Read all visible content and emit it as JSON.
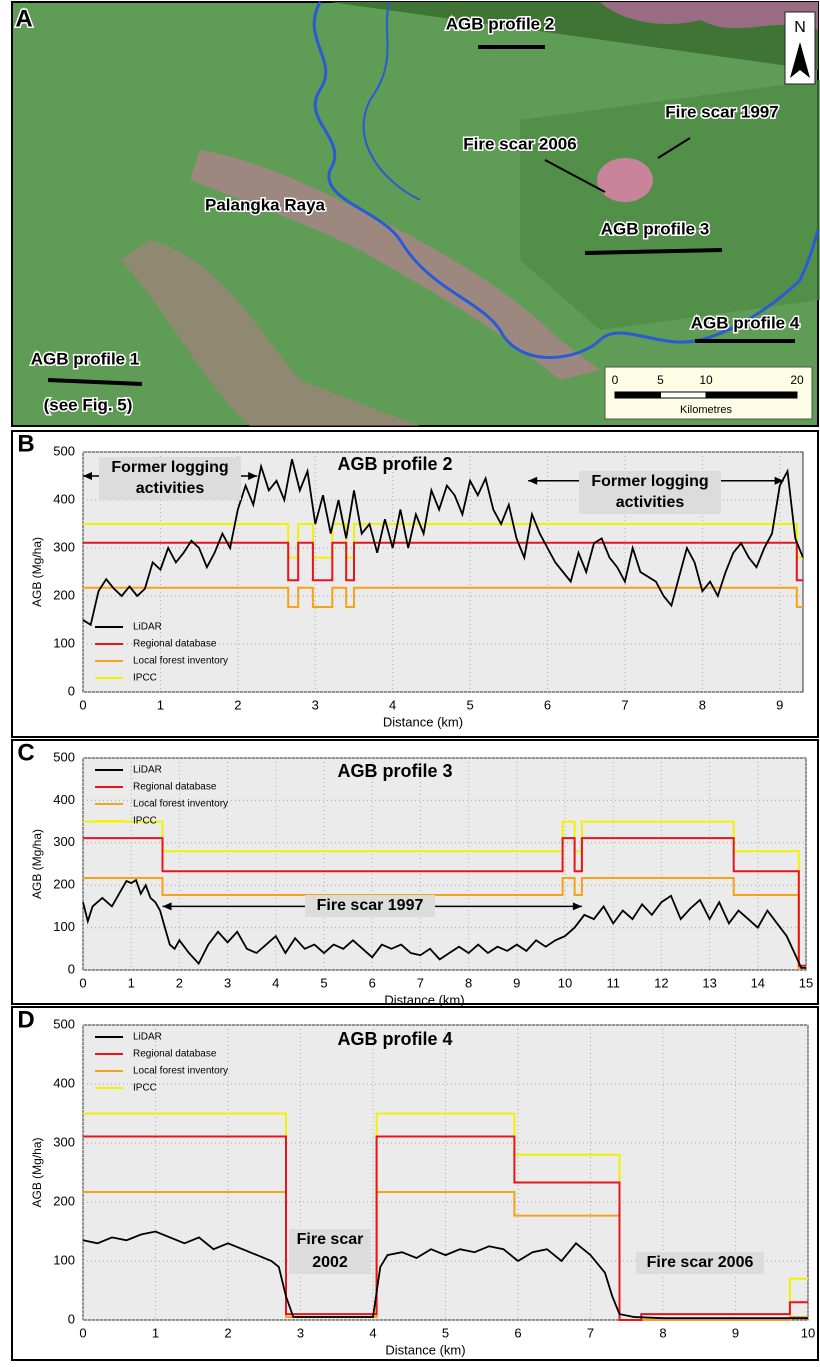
{
  "map": {
    "panel_label": "A",
    "north": "N",
    "labels": [
      "AGB profile 2",
      "Fire scar 1997",
      "Fire scar 2006",
      "Palangka Raya",
      "AGB profile 3",
      "AGB profile 4",
      "AGB profile 1",
      "(see Fig. 5)"
    ],
    "scale_bar": {
      "ticks": [
        0,
        5,
        10,
        20
      ],
      "unit": "Kilometres"
    }
  },
  "chart_data": [
    {
      "type": "line",
      "panel_label": "B",
      "title": "AGB profile 2",
      "x_label": "Distance (km)",
      "y_label": "AGB (Mg/ha)",
      "xlim": [
        0,
        9.3
      ],
      "ylim": [
        0,
        500
      ],
      "xticks": [
        0,
        1,
        2,
        3,
        4,
        5,
        6,
        7,
        8,
        9
      ],
      "yticks": [
        0,
        100,
        200,
        300,
        400,
        500
      ],
      "grid": true,
      "legend": "lower left",
      "annotations": [
        {
          "lines": [
            "Former logging",
            "activities"
          ]
        },
        {
          "lines": [
            "Former logging",
            "activities"
          ]
        }
      ],
      "series": [
        {
          "name": "LiDAR",
          "color": "#000000",
          "x": [
            0,
            0.1,
            0.2,
            0.3,
            0.4,
            0.5,
            0.6,
            0.7,
            0.8,
            0.9,
            1,
            1.1,
            1.2,
            1.3,
            1.4,
            1.5,
            1.6,
            1.7,
            1.8,
            1.9,
            2,
            2.1,
            2.2,
            2.3,
            2.4,
            2.5,
            2.6,
            2.7,
            2.8,
            2.9,
            3,
            3.1,
            3.2,
            3.3,
            3.4,
            3.5,
            3.6,
            3.7,
            3.8,
            3.9,
            4,
            4.1,
            4.2,
            4.3,
            4.4,
            4.5,
            4.6,
            4.7,
            4.8,
            4.9,
            5,
            5.1,
            5.2,
            5.3,
            5.4,
            5.5,
            5.6,
            5.7,
            5.8,
            5.9,
            6,
            6.1,
            6.2,
            6.3,
            6.4,
            6.5,
            6.6,
            6.7,
            6.8,
            6.9,
            7,
            7.1,
            7.2,
            7.3,
            7.4,
            7.5,
            7.6,
            7.7,
            7.8,
            7.9,
            8,
            8.1,
            8.2,
            8.3,
            8.4,
            8.5,
            8.6,
            8.7,
            8.8,
            8.9,
            9,
            9.1,
            9.2,
            9.3
          ],
          "values": [
            150,
            140,
            210,
            235,
            215,
            200,
            220,
            200,
            215,
            270,
            255,
            300,
            270,
            290,
            315,
            300,
            260,
            290,
            330,
            300,
            380,
            430,
            390,
            470,
            420,
            440,
            400,
            485,
            420,
            460,
            350,
            410,
            330,
            400,
            320,
            420,
            330,
            350,
            290,
            360,
            300,
            380,
            300,
            370,
            330,
            420,
            380,
            430,
            410,
            370,
            440,
            410,
            445,
            380,
            350,
            390,
            320,
            280,
            370,
            330,
            300,
            270,
            250,
            230,
            290,
            250,
            310,
            320,
            280,
            260,
            230,
            300,
            250,
            240,
            230,
            200,
            180,
            240,
            300,
            270,
            210,
            230,
            200,
            250,
            290,
            310,
            280,
            260,
            300,
            330,
            430,
            460,
            320,
            280
          ]
        },
        {
          "name": "Regional database",
          "color": "#e8141b",
          "x": [
            0,
            2.65,
            2.65,
            2.78,
            2.78,
            2.97,
            2.97,
            3.22,
            3.22,
            3.4,
            3.4,
            3.5,
            3.5,
            9.22,
            9.22,
            9.3
          ],
          "values": [
            311,
            311,
            233,
            233,
            311,
            311,
            233,
            233,
            311,
            311,
            233,
            233,
            311,
            311,
            233,
            233
          ]
        },
        {
          "name": "Local forest inventory",
          "color": "#f7a21b",
          "x": [
            0,
            2.65,
            2.65,
            2.78,
            2.78,
            2.97,
            2.97,
            3.22,
            3.22,
            3.4,
            3.4,
            3.5,
            3.5,
            9.22,
            9.22,
            9.3
          ],
          "values": [
            217,
            217,
            177,
            177,
            217,
            217,
            177,
            177,
            217,
            217,
            177,
            177,
            217,
            217,
            177,
            177
          ]
        },
        {
          "name": "IPCC",
          "color": "#f2f200",
          "x": [
            0,
            2.65,
            2.65,
            2.78,
            2.78,
            2.97,
            2.97,
            3.22,
            3.22,
            3.4,
            3.4,
            3.5,
            3.5,
            9.22,
            9.22,
            9.3
          ],
          "values": [
            350,
            350,
            280,
            280,
            350,
            350,
            280,
            280,
            350,
            350,
            280,
            280,
            350,
            350,
            280,
            280
          ]
        }
      ]
    },
    {
      "type": "line",
      "panel_label": "C",
      "title": "AGB profile 3",
      "x_label": "Distance (km)",
      "y_label": "AGB (Mg/ha)",
      "xlim": [
        0,
        15
      ],
      "ylim": [
        0,
        500
      ],
      "xticks": [
        0,
        1,
        2,
        3,
        4,
        5,
        6,
        7,
        8,
        9,
        10,
        11,
        12,
        13,
        14,
        15
      ],
      "yticks": [
        0,
        100,
        200,
        300,
        400,
        500
      ],
      "grid": true,
      "legend": "upper left",
      "annotations": [
        {
          "lines": [
            "Fire scar 1997"
          ]
        }
      ],
      "series": [
        {
          "name": "LiDAR",
          "color": "#000000",
          "x": [
            0,
            0.1,
            0.2,
            0.4,
            0.6,
            0.8,
            0.9,
            1,
            1.1,
            1.2,
            1.3,
            1.4,
            1.5,
            1.6,
            1.7,
            1.8,
            1.9,
            2,
            2.2,
            2.4,
            2.6,
            2.8,
            3,
            3.2,
            3.4,
            3.6,
            3.8,
            4,
            4.2,
            4.4,
            4.6,
            4.8,
            5,
            5.2,
            5.4,
            5.6,
            5.8,
            6,
            6.2,
            6.4,
            6.6,
            6.8,
            7,
            7.2,
            7.4,
            7.6,
            7.8,
            8,
            8.2,
            8.4,
            8.6,
            8.8,
            9,
            9.2,
            9.4,
            9.6,
            9.8,
            10,
            10.2,
            10.4,
            10.6,
            10.8,
            11,
            11.2,
            11.4,
            11.6,
            11.8,
            12,
            12.2,
            12.4,
            12.6,
            12.8,
            13,
            13.2,
            13.4,
            13.6,
            13.8,
            14,
            14.2,
            14.4,
            14.6,
            14.8,
            14.9,
            15
          ],
          "values": [
            160,
            115,
            150,
            170,
            150,
            190,
            210,
            205,
            212,
            180,
            200,
            170,
            160,
            140,
            100,
            60,
            50,
            70,
            40,
            15,
            60,
            90,
            65,
            90,
            50,
            40,
            60,
            80,
            40,
            75,
            50,
            60,
            40,
            60,
            50,
            70,
            50,
            30,
            60,
            50,
            60,
            40,
            35,
            50,
            25,
            40,
            55,
            40,
            60,
            40,
            55,
            45,
            60,
            45,
            70,
            55,
            70,
            80,
            100,
            130,
            120,
            150,
            110,
            140,
            120,
            155,
            130,
            160,
            175,
            120,
            145,
            165,
            120,
            160,
            110,
            140,
            120,
            100,
            140,
            110,
            80,
            30,
            5,
            5
          ]
        },
        {
          "name": "Regional database",
          "color": "#e8141b",
          "x": [
            0,
            1.65,
            1.65,
            9.95,
            9.95,
            10.2,
            10.2,
            10.35,
            10.35,
            13.5,
            13.5,
            14.85,
            14.85,
            15
          ],
          "values": [
            311,
            311,
            233,
            233,
            311,
            311,
            233,
            233,
            311,
            311,
            233,
            233,
            10,
            10
          ]
        },
        {
          "name": "Local forest inventory",
          "color": "#f7a21b",
          "x": [
            0,
            1.65,
            1.65,
            9.95,
            9.95,
            10.2,
            10.2,
            10.35,
            10.35,
            13.5,
            13.5,
            14.85,
            14.85,
            15
          ],
          "values": [
            217,
            217,
            177,
            177,
            217,
            217,
            177,
            177,
            217,
            217,
            177,
            177,
            5,
            5
          ]
        },
        {
          "name": "IPCC",
          "color": "#f2f200",
          "x": [
            0,
            1.65,
            1.65,
            9.95,
            9.95,
            10.2,
            10.2,
            10.35,
            10.35,
            13.5,
            13.5,
            14.85,
            14.85,
            15
          ],
          "values": [
            350,
            350,
            280,
            280,
            350,
            350,
            280,
            280,
            350,
            350,
            280,
            280,
            10,
            10
          ]
        }
      ]
    },
    {
      "type": "line",
      "panel_label": "D",
      "title": "AGB profile 4",
      "x_label": "Distance (km)",
      "y_label": "AGB (Mg/ha)",
      "xlim": [
        0,
        10
      ],
      "ylim": [
        0,
        500
      ],
      "xticks": [
        0,
        1,
        2,
        3,
        4,
        5,
        6,
        7,
        8,
        9,
        10
      ],
      "yticks": [
        0,
        100,
        200,
        300,
        400,
        500
      ],
      "grid": true,
      "legend": "upper left",
      "annotations": [
        {
          "lines": [
            "Fire scar",
            "2002"
          ]
        },
        {
          "lines": [
            "Fire scar 2006"
          ]
        }
      ],
      "series": [
        {
          "name": "LiDAR",
          "color": "#000000",
          "x": [
            0,
            0.2,
            0.4,
            0.6,
            0.8,
            1,
            1.2,
            1.4,
            1.6,
            1.8,
            2,
            2.2,
            2.4,
            2.6,
            2.7,
            2.8,
            2.9,
            3,
            3.5,
            4,
            4.1,
            4.2,
            4.4,
            4.6,
            4.8,
            5,
            5.2,
            5.4,
            5.6,
            5.8,
            6,
            6.2,
            6.4,
            6.6,
            6.8,
            7,
            7.2,
            7.3,
            7.4,
            7.6,
            8,
            9,
            10
          ],
          "values": [
            135,
            130,
            140,
            135,
            145,
            150,
            140,
            130,
            140,
            120,
            130,
            120,
            110,
            100,
            90,
            40,
            5,
            5,
            5,
            5,
            90,
            110,
            115,
            105,
            120,
            110,
            120,
            115,
            125,
            120,
            100,
            115,
            120,
            100,
            130,
            110,
            80,
            40,
            10,
            5,
            3,
            3,
            3
          ]
        },
        {
          "name": "Regional database",
          "color": "#e8141b",
          "x": [
            0,
            2.8,
            2.8,
            4.05,
            4.05,
            5.95,
            5.95,
            7.4,
            7.4,
            7.7,
            7.7,
            9.75,
            9.75,
            10
          ],
          "values": [
            311,
            311,
            10,
            10,
            311,
            311,
            233,
            233,
            0,
            0,
            10,
            10,
            30,
            30
          ]
        },
        {
          "name": "Local forest inventory",
          "color": "#f7a21b",
          "x": [
            0,
            2.8,
            2.8,
            4.05,
            4.05,
            5.95,
            5.95,
            7.4,
            7.4,
            7.7,
            7.7,
            9.75,
            9.75,
            10
          ],
          "values": [
            217,
            217,
            5,
            5,
            217,
            217,
            177,
            177,
            0,
            0,
            0,
            0,
            5,
            5
          ]
        },
        {
          "name": "IPCC",
          "color": "#f2f200",
          "x": [
            0,
            2.8,
            2.8,
            4.05,
            4.05,
            5.95,
            5.95,
            7.4,
            7.4,
            7.7,
            7.7,
            9.75,
            9.75,
            10
          ],
          "values": [
            350,
            350,
            5,
            5,
            350,
            350,
            280,
            280,
            0,
            0,
            0,
            0,
            70,
            70
          ]
        }
      ]
    }
  ]
}
